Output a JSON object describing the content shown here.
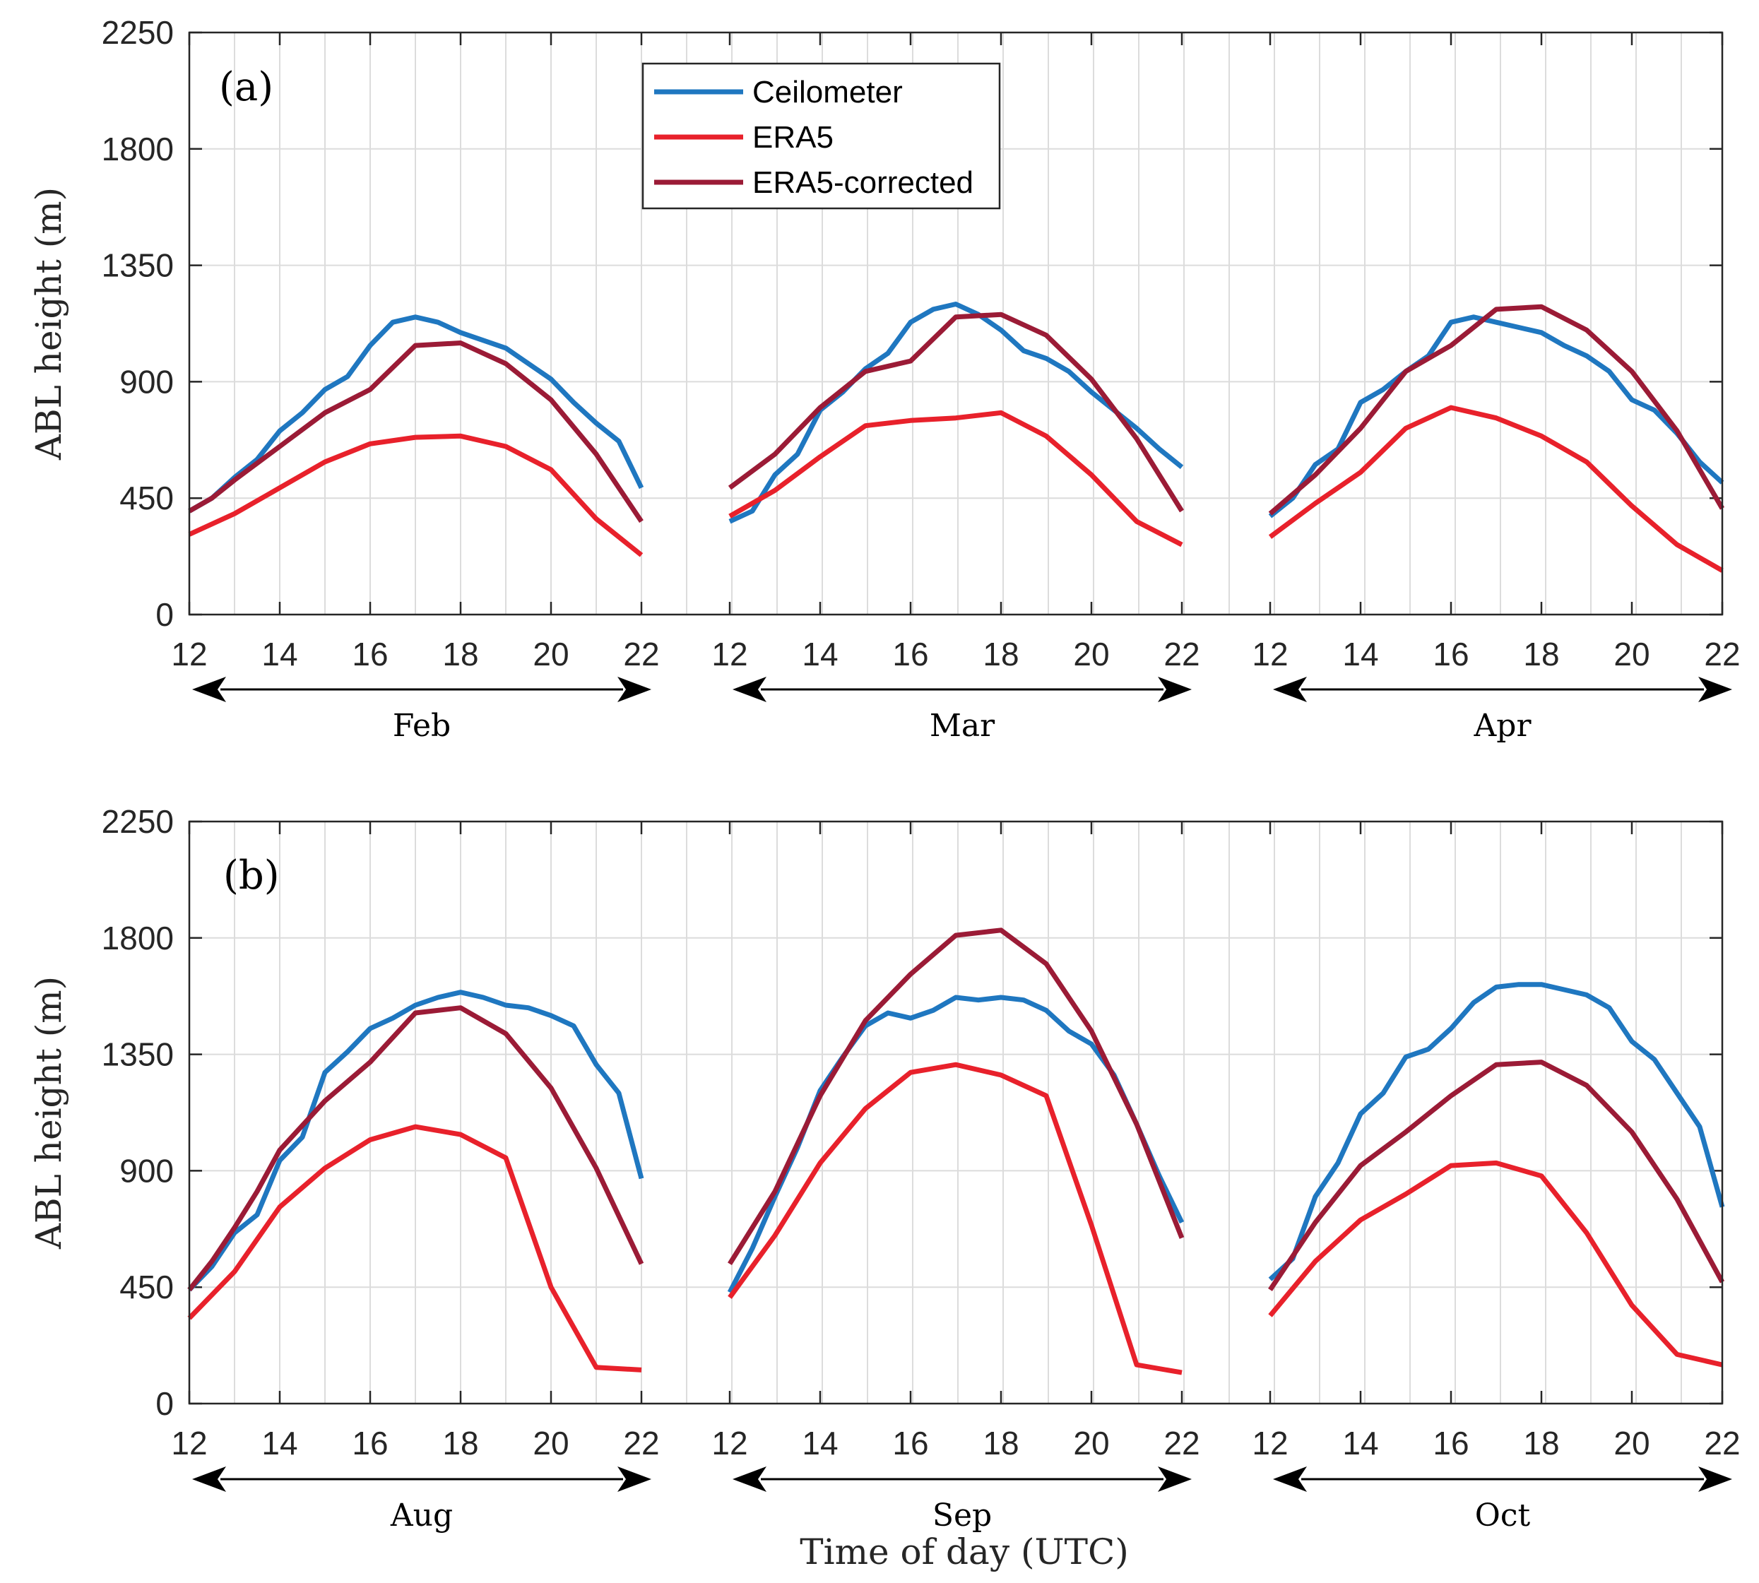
{
  "chart_data": {
    "type": "line",
    "xlabel": "Time of day (UTC)",
    "ylabel": "ABL height (m)",
    "ylim": [
      0,
      2250
    ],
    "yticks": [
      0,
      450,
      900,
      1350,
      1800,
      2250
    ],
    "xlim": [
      12,
      22
    ],
    "xticks": [
      12,
      14,
      16,
      18,
      20,
      22
    ],
    "grid": true,
    "legend": {
      "placement": "top, inside panel (a)",
      "entries": [
        {
          "name": "Ceilometer",
          "color": "#1f77c0"
        },
        {
          "name": "ERA5",
          "color": "#e8212b"
        },
        {
          "name": "ERA5-corrected",
          "color": "#9b1b36"
        }
      ]
    },
    "panels": [
      {
        "label": "(a)",
        "months": [
          {
            "name": "Feb",
            "ceilometer": {
              "x": [
                12,
                12.5,
                13,
                13.5,
                14,
                14.5,
                15,
                15.5,
                16,
                16.5,
                17,
                17.5,
                18,
                18.5,
                19,
                19.5,
                20,
                20.5,
                21,
                21.5,
                22
              ],
              "y": [
                400,
                450,
                530,
                600,
                710,
                780,
                870,
                920,
                1040,
                1130,
                1150,
                1130,
                1090,
                1060,
                1030,
                970,
                910,
                820,
                740,
                670,
                490
              ]
            },
            "era5": {
              "x": [
                12,
                13,
                14,
                15,
                16,
                17,
                18,
                19,
                20,
                21,
                22
              ],
              "y": [
                310,
                390,
                490,
                590,
                660,
                685,
                690,
                650,
                560,
                370,
                230
              ]
            },
            "era5_corrected": {
              "x": [
                12,
                12.5,
                13,
                14,
                15,
                16,
                17,
                18,
                19,
                20,
                21,
                22
              ],
              "y": [
                400,
                450,
                520,
                650,
                780,
                870,
                1040,
                1050,
                970,
                830,
                620,
                360
              ]
            }
          },
          {
            "name": "Mar",
            "ceilometer": {
              "x": [
                12,
                12.5,
                13,
                13.5,
                14,
                14.5,
                15,
                15.5,
                16,
                16.5,
                17,
                17.5,
                18,
                18.5,
                19,
                19.5,
                20,
                20.5,
                21,
                21.5,
                22
              ],
              "y": [
                360,
                400,
                540,
                620,
                790,
                860,
                950,
                1010,
                1130,
                1180,
                1200,
                1160,
                1100,
                1020,
                990,
                940,
                860,
                790,
                720,
                640,
                570
              ]
            },
            "era5": {
              "x": [
                12,
                13,
                14,
                15,
                16,
                17,
                18,
                19,
                20,
                21,
                22
              ],
              "y": [
                380,
                480,
                610,
                730,
                750,
                760,
                780,
                690,
                540,
                360,
                270
              ]
            },
            "era5_corrected": {
              "x": [
                12,
                13,
                14,
                15,
                16,
                17,
                18,
                19,
                20,
                21,
                22
              ],
              "y": [
                490,
                620,
                800,
                940,
                980,
                1150,
                1160,
                1080,
                910,
                680,
                400
              ]
            }
          },
          {
            "name": "Apr",
            "ceilometer": {
              "x": [
                12,
                12.5,
                13,
                13.5,
                14,
                14.5,
                15,
                15.5,
                16,
                16.5,
                17,
                17.5,
                18,
                18.5,
                19,
                19.5,
                20,
                20.5,
                21,
                21.5,
                22
              ],
              "y": [
                380,
                450,
                580,
                640,
                820,
                870,
                940,
                1000,
                1130,
                1150,
                1130,
                1110,
                1090,
                1040,
                1000,
                940,
                830,
                790,
                700,
                590,
                510
              ]
            },
            "era5": {
              "x": [
                12,
                13,
                14,
                15,
                16,
                17,
                18,
                19,
                20,
                21,
                22
              ],
              "y": [
                300,
                430,
                550,
                720,
                800,
                760,
                690,
                590,
                420,
                270,
                170
              ]
            },
            "era5_corrected": {
              "x": [
                12,
                13,
                14,
                15,
                16,
                17,
                18,
                19,
                20,
                21,
                22
              ],
              "y": [
                390,
                540,
                720,
                940,
                1040,
                1180,
                1190,
                1100,
                940,
                710,
                410
              ]
            }
          }
        ]
      },
      {
        "label": "(b)",
        "months": [
          {
            "name": "Aug",
            "ceilometer": {
              "x": [
                12,
                12.5,
                13,
                13.5,
                14,
                14.5,
                15,
                15.5,
                16,
                16.5,
                17,
                17.5,
                18,
                18.5,
                19,
                19.5,
                20,
                20.5,
                21,
                21.5,
                22
              ],
              "y": [
                440,
                530,
                660,
                730,
                940,
                1030,
                1280,
                1360,
                1450,
                1490,
                1540,
                1570,
                1590,
                1570,
                1540,
                1530,
                1500,
                1460,
                1310,
                1200,
                870
              ]
            },
            "era5": {
              "x": [
                12,
                13,
                14,
                15,
                16,
                17,
                18,
                19,
                20,
                21,
                22
              ],
              "y": [
                330,
                510,
                760,
                910,
                1020,
                1070,
                1040,
                950,
                450,
                140,
                130
              ]
            },
            "era5_corrected": {
              "x": [
                12,
                12.5,
                13,
                13.5,
                14,
                15,
                16,
                17,
                18,
                19,
                20,
                21,
                22
              ],
              "y": [
                440,
                550,
                680,
                820,
                980,
                1170,
                1320,
                1510,
                1530,
                1430,
                1220,
                910,
                540
              ]
            }
          },
          {
            "name": "Sep",
            "ceilometer": {
              "x": [
                12,
                12.5,
                13,
                13.5,
                14,
                14.5,
                15,
                15.5,
                16,
                16.5,
                17,
                17.5,
                18,
                18.5,
                19,
                19.5,
                20,
                20.5,
                21,
                21.5,
                22
              ],
              "y": [
                430,
                600,
                800,
                990,
                1210,
                1340,
                1460,
                1510,
                1490,
                1520,
                1570,
                1560,
                1570,
                1560,
                1520,
                1440,
                1390,
                1270,
                1080,
                880,
                700
              ]
            },
            "era5": {
              "x": [
                12,
                13,
                14,
                15,
                16,
                17,
                18,
                19,
                20,
                21,
                22
              ],
              "y": [
                410,
                650,
                930,
                1140,
                1280,
                1310,
                1270,
                1190,
                690,
                150,
                120
              ]
            },
            "era5_corrected": {
              "x": [
                12,
                13,
                14,
                15,
                16,
                17,
                18,
                19,
                20,
                21,
                22
              ],
              "y": [
                540,
                820,
                1190,
                1480,
                1660,
                1810,
                1830,
                1700,
                1440,
                1080,
                640
              ]
            }
          },
          {
            "name": "Oct",
            "ceilometer": {
              "x": [
                12,
                12.5,
                13,
                13.5,
                14,
                14.5,
                15,
                15.5,
                16,
                16.5,
                17,
                17.5,
                18,
                18.5,
                19,
                19.5,
                20,
                20.5,
                21,
                21.5,
                22
              ],
              "y": [
                480,
                560,
                800,
                930,
                1120,
                1200,
                1340,
                1370,
                1450,
                1550,
                1610,
                1620,
                1620,
                1600,
                1580,
                1530,
                1400,
                1330,
                1200,
                1070,
                760
              ]
            },
            "era5": {
              "x": [
                12,
                13,
                14,
                15,
                16,
                17,
                18,
                19,
                20,
                21,
                22
              ],
              "y": [
                340,
                550,
                710,
                810,
                920,
                930,
                880,
                660,
                380,
                190,
                150
              ]
            },
            "era5_corrected": {
              "x": [
                12,
                13,
                14,
                15,
                16,
                17,
                18,
                19,
                20,
                21,
                22
              ],
              "y": [
                440,
                700,
                920,
                1050,
                1190,
                1310,
                1320,
                1230,
                1050,
                790,
                470
              ]
            }
          }
        ]
      }
    ]
  }
}
